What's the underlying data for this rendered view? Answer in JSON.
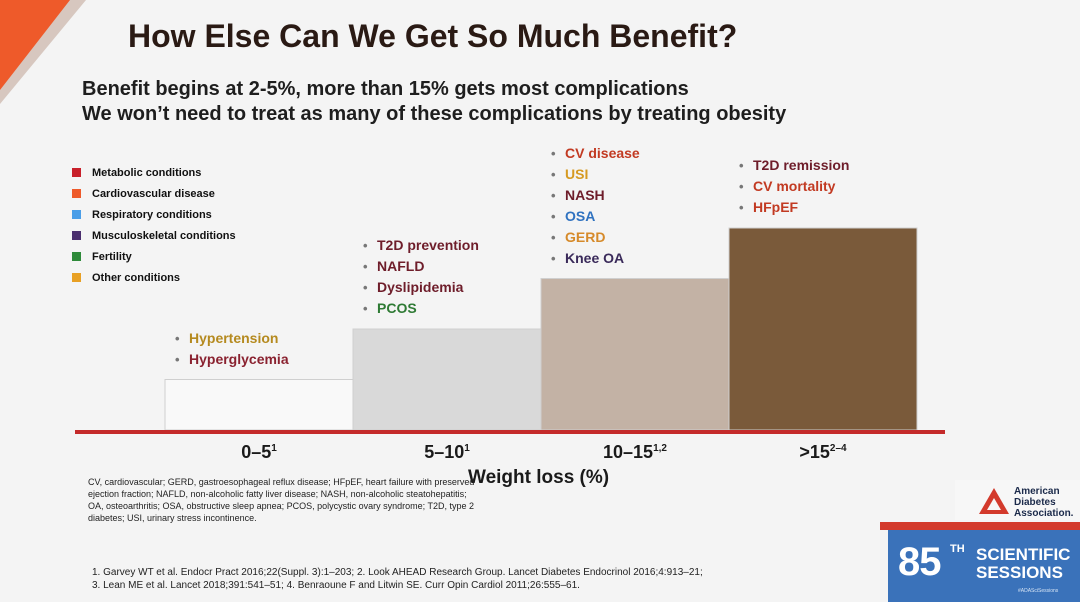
{
  "slide": {
    "title": "How Else Can We Get So Much Benefit?",
    "subtitle_1": "Benefit begins at 2-5%, more than 15% gets most complications",
    "subtitle_2": "We won’t need to treat as many of these complications by treating obesity",
    "abbreviations": "CV, cardiovascular; GERD, gastroesophageal reflux disease; HFpEF, heart failure with preserved ejection fraction; NAFLD, non-alcoholic fatty liver disease; NASH, non-alcoholic steatohepatitis; OA, osteoarthritis; OSA, obstructive sleep apnea; PCOS, polycystic ovary syndrome; T2D, type 2 diabetes; USI, urinary stress incontinence.",
    "references_1": "1. Garvey WT et al. Endocr Pract 2016;22(Suppl. 3):1–203; 2. Look AHEAD Research Group. Lancet Diabetes Endocrinol 2016;4:913–21;",
    "references_2": "3. Lean ME et al. Lancet 2018;391:541–51; 4. Benraoune F and Litwin SE. Curr Opin Cardiol 2011;26:555–61.",
    "ada": {
      "line1": "American",
      "line2": "Diabetes",
      "line3": "Association."
    },
    "session": {
      "number": "85",
      "suffix": "TH",
      "line1": "SCIENTIFIC",
      "line2": "SESSIONS",
      "hashtag": "#ADASciSessions"
    }
  },
  "legend": [
    {
      "label": "Metabolic conditions",
      "color": "#c8202a"
    },
    {
      "label": "Cardiovascular disease",
      "color": "#ee5a2a"
    },
    {
      "label": "Respiratory conditions",
      "color": "#4a9ee8"
    },
    {
      "label": "Musculoskeletal conditions",
      "color": "#4a2e6e"
    },
    {
      "label": "Fertility",
      "color": "#2e8a3a"
    },
    {
      "label": "Other conditions",
      "color": "#e8a024"
    }
  ],
  "chart_data": {
    "type": "bar",
    "xlabel": "Weight loss (%)",
    "categories": [
      {
        "label": "0–5",
        "sup": "1"
      },
      {
        "label": "5–10",
        "sup": "1"
      },
      {
        "label": "10–15",
        "sup": "1,2"
      },
      {
        "label": ">15",
        "sup": "2–4"
      }
    ],
    "values": [
      1,
      2,
      3,
      4
    ],
    "bar_colors": [
      "#f9f9f9",
      "#d9d9d9",
      "#c3b2a5",
      "#7a5a3a"
    ],
    "annotations": [
      [
        {
          "text": "Hypertension",
          "color": "#b58a1f"
        },
        {
          "text": "Hyperglycemia",
          "color": "#8a2230"
        }
      ],
      [
        {
          "text": "T2D prevention",
          "color": "#6e1d2a"
        },
        {
          "text": "NAFLD",
          "color": "#6e1d2a"
        },
        {
          "text": "Dyslipidemia",
          "color": "#6e1d2a"
        },
        {
          "text": "PCOS",
          "color": "#2e7a34"
        }
      ],
      [
        {
          "text": "CV disease",
          "color": "#c23a22"
        },
        {
          "text": "USI",
          "color": "#d69a22"
        },
        {
          "text": "NASH",
          "color": "#6e1d2a"
        },
        {
          "text": "OSA",
          "color": "#2f72c0"
        },
        {
          "text": "GERD",
          "color": "#d68a2a"
        },
        {
          "text": "Knee OA",
          "color": "#3a2a5a"
        }
      ],
      [
        {
          "text": "T2D remission",
          "color": "#6e1d2a"
        },
        {
          "text": "CV mortality",
          "color": "#c23a22"
        },
        {
          "text": "HFpEF",
          "color": "#c23a22"
        }
      ]
    ]
  }
}
